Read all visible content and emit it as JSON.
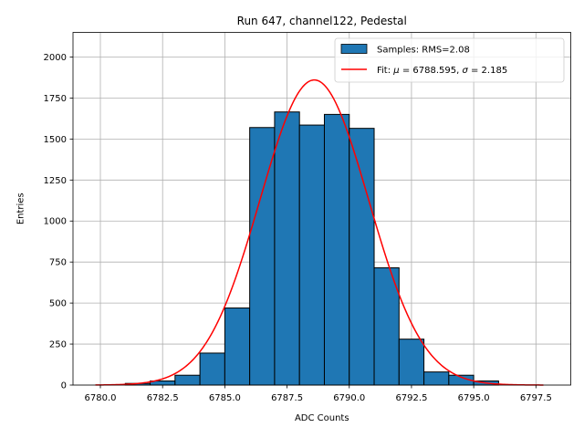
{
  "chart_data": {
    "type": "bar",
    "title": "Run 647, channel122, Pedestal",
    "xlabel": "ADC Counts",
    "ylabel": "Entries",
    "xlim": [
      6778.9,
      6798.9
    ],
    "ylim": [
      0,
      2150
    ],
    "xticks": [
      6780.0,
      6782.5,
      6785.0,
      6787.5,
      6790.0,
      6792.5,
      6795.0,
      6797.5
    ],
    "xtick_labels": [
      "6780.0",
      "6782.5",
      "6785.0",
      "6787.5",
      "6790.0",
      "6792.5",
      "6795.0",
      "6797.5"
    ],
    "yticks": [
      0,
      250,
      500,
      750,
      1000,
      1250,
      1500,
      1750,
      2000
    ],
    "ytick_labels": [
      "0",
      "250",
      "500",
      "750",
      "1000",
      "1250",
      "1500",
      "1750",
      "2000"
    ],
    "grid": true,
    "legend_position": "top-right",
    "histogram": {
      "name": "Samples: RMS=2.08",
      "color": "#1f77b4",
      "edge_color": "#000000",
      "bins": [
        {
          "x0": 6781,
          "x1": 6782,
          "value": 10
        },
        {
          "x0": 6782,
          "x1": 6783,
          "value": 25
        },
        {
          "x0": 6783,
          "x1": 6784,
          "value": 60
        },
        {
          "x0": 6784,
          "x1": 6785,
          "value": 195
        },
        {
          "x0": 6785,
          "x1": 6786,
          "value": 470
        },
        {
          "x0": 6786,
          "x1": 6787,
          "value": 1570
        },
        {
          "x0": 6787,
          "x1": 6788,
          "value": 1665
        },
        {
          "x0": 6788,
          "x1": 6789,
          "value": 1585
        },
        {
          "x0": 6789,
          "x1": 6790,
          "value": 1650
        },
        {
          "x0": 6790,
          "x1": 6791,
          "value": 1565
        },
        {
          "x0": 6791,
          "x1": 6792,
          "value": 715
        },
        {
          "x0": 6792,
          "x1": 6793,
          "value": 280
        },
        {
          "x0": 6793,
          "x1": 6794,
          "value": 80
        },
        {
          "x0": 6794,
          "x1": 6795,
          "value": 60
        },
        {
          "x0": 6795,
          "x1": 6796,
          "value": 25
        }
      ]
    },
    "fit": {
      "label_prefix": "Fit: ",
      "label_mu_symbol": "μ",
      "label_mu_value": " = 6788.595, ",
      "label_sigma_symbol": "σ",
      "label_sigma_value": " = 2.185",
      "mu": 6788.595,
      "sigma": 2.185,
      "amplitude": 1860,
      "x_range": [
        6779.8,
        6797.8
      ],
      "color": "#ff0000"
    }
  }
}
